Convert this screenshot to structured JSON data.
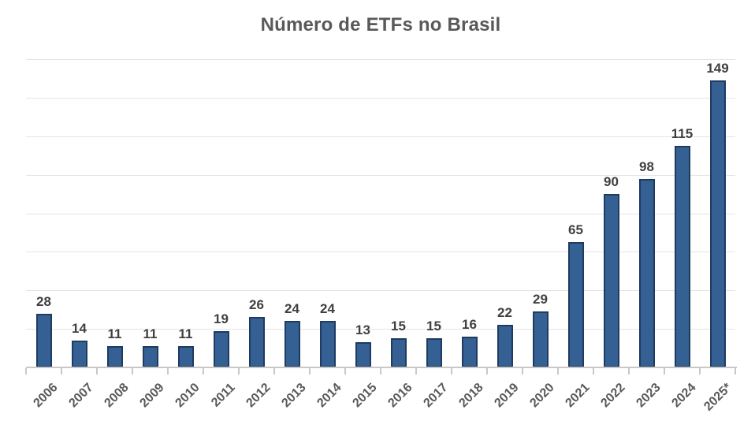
{
  "chart_data": {
    "type": "bar",
    "title": "Número de ETFs no Brasil",
    "categories": [
      "2006",
      "2007",
      "2008",
      "2009",
      "2010",
      "2011",
      "2012",
      "2013",
      "2014",
      "2015",
      "2016",
      "2017",
      "2018",
      "2019",
      "2020",
      "2021",
      "2022",
      "2023",
      "2024",
      "2025*"
    ],
    "values": [
      28,
      14,
      11,
      11,
      11,
      19,
      26,
      24,
      24,
      13,
      15,
      15,
      16,
      22,
      29,
      65,
      90,
      98,
      115,
      149
    ],
    "xlabel": "",
    "ylabel": "",
    "ylim": [
      0,
      160
    ],
    "gridline_step": 20,
    "grid": true,
    "legend": "none",
    "data_labels": true
  },
  "colors": {
    "background": "#FFFFFF",
    "bar_fill": "#346094",
    "bar_border": "#1F3B60",
    "gridline": "#E4E4E4",
    "axis_line": "#C8C8C8",
    "title_text": "#595959",
    "data_label_text": "#404040",
    "axis_label_text": "#595959"
  }
}
